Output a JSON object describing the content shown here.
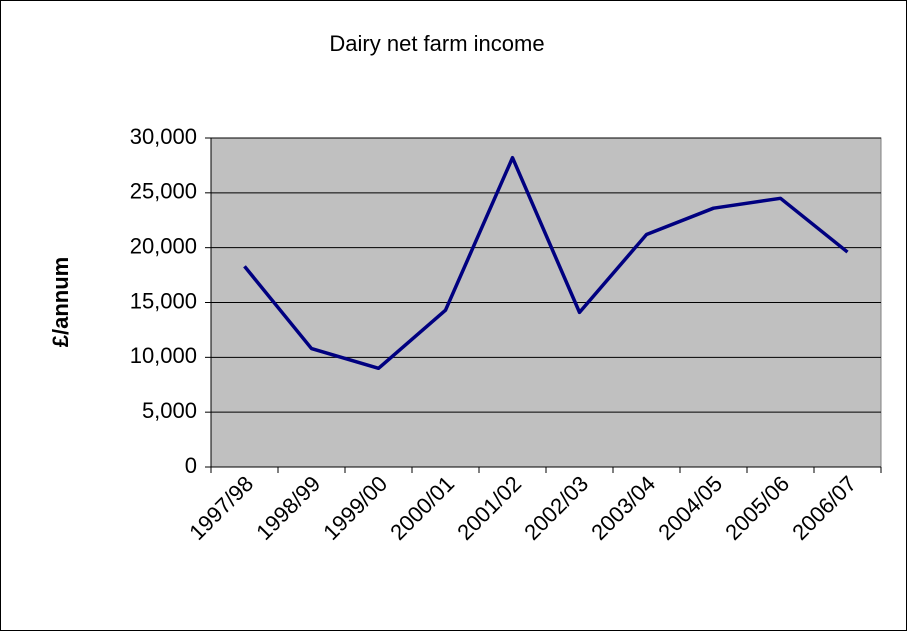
{
  "chart_data": {
    "type": "line",
    "title": "Dairy net farm income",
    "y_label": "£/annum",
    "categories": [
      "1997/98",
      "1998/99",
      "1999/00",
      "2000/01",
      "2001/02",
      "2002/03",
      "2003/04",
      "2004/05",
      "2005/06",
      "2006/07"
    ],
    "series": [
      {
        "name": "Dairy net farm income",
        "color": "#000080",
        "values": [
          18300,
          10800,
          9000,
          14300,
          28200,
          14100,
          21200,
          23600,
          24500,
          19600
        ]
      }
    ],
    "ylim": [
      0,
      30000
    ],
    "yticks": [
      0,
      {
        "value": 5000,
        "label": "5,000"
      },
      {
        "value": 10000,
        "label": "10,000"
      },
      {
        "value": 15000,
        "label": "15,000"
      },
      {
        "value": 20000,
        "label": "20,000"
      },
      {
        "value": 25000,
        "label": "25,000"
      },
      {
        "value": 30000,
        "label": "30,000"
      }
    ],
    "grid": true,
    "plot_background": "#c0c0c0"
  }
}
